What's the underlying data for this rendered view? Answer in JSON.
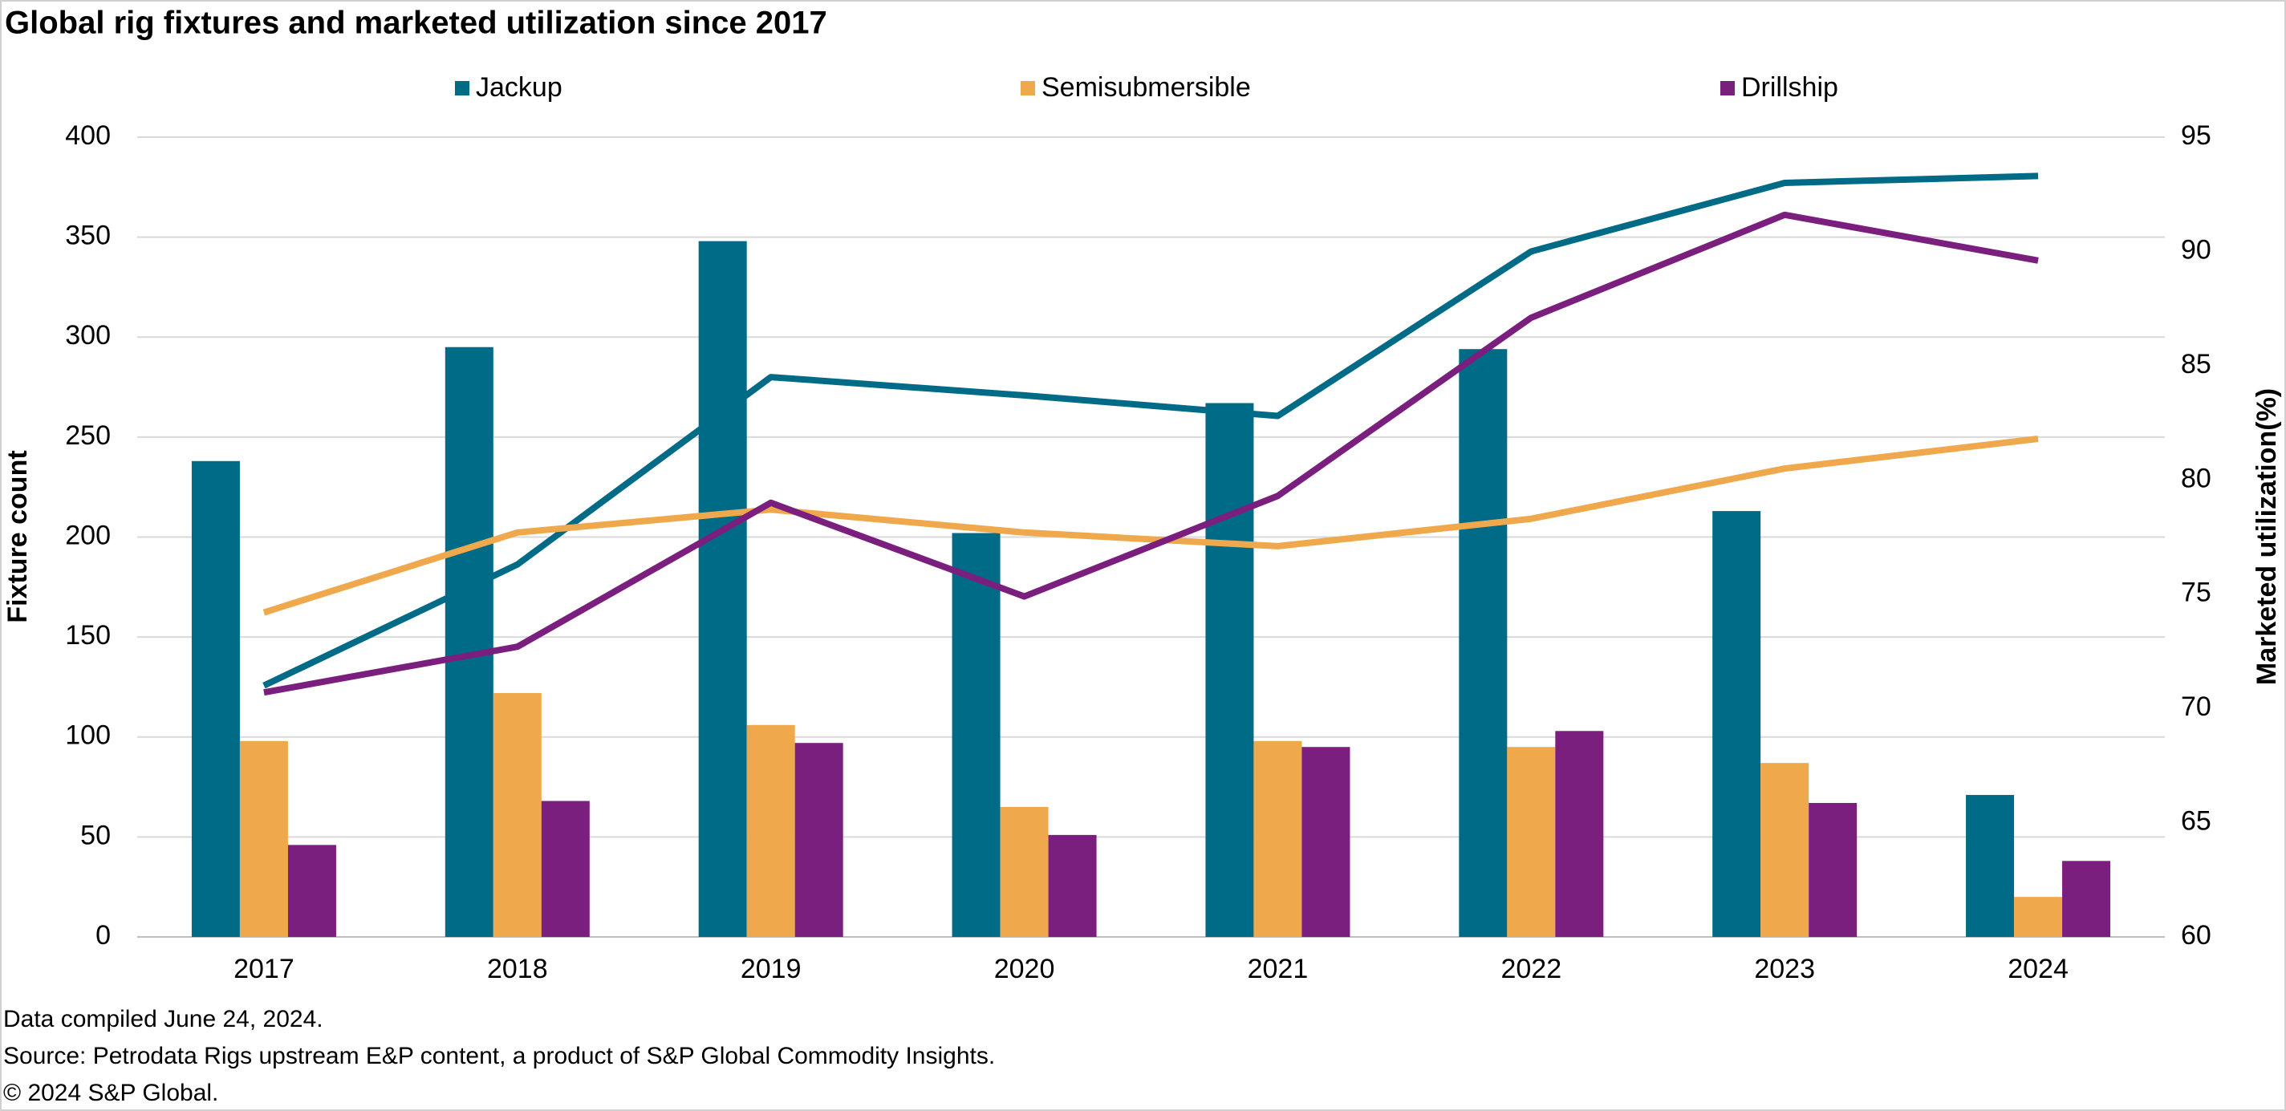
{
  "chart_data": {
    "type": "bar_line",
    "title": "Global rig fixtures and marketed utilization since 2017",
    "ylabel": "Fixture count",
    "y2label": "Marketed utilization(%)",
    "categories": [
      "2017",
      "2018",
      "2019",
      "2020",
      "2021",
      "2022",
      "2023",
      "2024"
    ],
    "series": [
      {
        "name": "Jackup",
        "color": "#006b86",
        "values": [
          238,
          295,
          348,
          202,
          267,
          294,
          213,
          71
        ],
        "utilization": [
          71.0,
          76.3,
          84.5,
          83.7,
          82.8,
          90.0,
          93.0,
          93.3
        ]
      },
      {
        "name": "Semisubmersible",
        "color": "#f0a84c",
        "values": [
          98,
          122,
          106,
          65,
          98,
          95,
          87,
          20
        ],
        "utilization": [
          74.2,
          77.7,
          78.7,
          77.7,
          77.1,
          78.3,
          80.5,
          81.8
        ]
      },
      {
        "name": "Drillship",
        "color": "#7a1f7e",
        "values": [
          46,
          68,
          97,
          51,
          95,
          103,
          67,
          38
        ],
        "utilization": [
          70.7,
          72.7,
          79.0,
          74.9,
          79.3,
          87.1,
          91.6,
          89.6
        ]
      }
    ],
    "ylim": [
      0,
      400
    ],
    "yticks": [
      0,
      50,
      100,
      150,
      200,
      250,
      300,
      350,
      400
    ],
    "y2lim": [
      60,
      95
    ],
    "y2ticks": [
      60,
      65,
      70,
      75,
      80,
      85,
      90,
      95
    ],
    "grid": true,
    "notes": [
      "Data compiled June 24, 2024.",
      "Source: Petrodata Rigs upstream E&P content, a product of S&P Global Commodity Insights.",
      "© 2024 S&P Global."
    ]
  }
}
